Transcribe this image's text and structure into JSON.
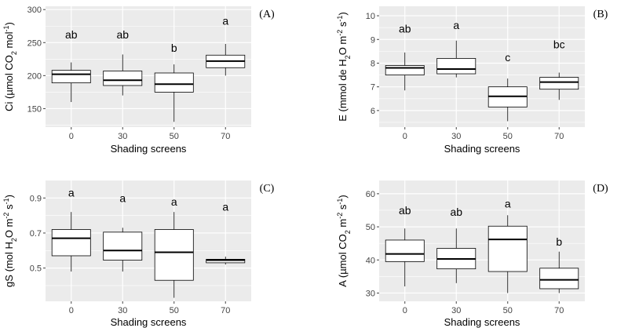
{
  "chart_data": [
    {
      "id": "A",
      "type": "boxplot",
      "panel_label": "(A)",
      "xlabel": "Shading screens",
      "ylabel_parts": [
        "Ci (µmol CO",
        "2",
        " mol",
        "-1",
        ")"
      ],
      "categories": [
        "0",
        "30",
        "50",
        "70"
      ],
      "ylim": [
        122,
        305
      ],
      "yticks": [
        150,
        200,
        250,
        300
      ],
      "boxes": [
        {
          "min": 160,
          "q1": 189,
          "median": 202,
          "q3": 208,
          "max": 220,
          "letter": "ab"
        },
        {
          "min": 170,
          "q1": 185,
          "median": 193,
          "q3": 207,
          "max": 232,
          "letter": "ab"
        },
        {
          "min": 130,
          "q1": 175,
          "median": 187,
          "q3": 204,
          "max": 217,
          "letter": "b"
        },
        {
          "min": 200,
          "q1": 212,
          "median": 222,
          "q3": 231,
          "max": 248,
          "letter": "a"
        }
      ],
      "letter_y": [
        262,
        262,
        242,
        283
      ]
    },
    {
      "id": "B",
      "type": "boxplot",
      "panel_label": "(B)",
      "xlabel": "Shading screens",
      "ylabel_parts": [
        "E (mmol de H",
        "2",
        "O m",
        "-2",
        " s",
        "-1",
        ")"
      ],
      "categories": [
        "0",
        "30",
        "50",
        "70"
      ],
      "ylim": [
        5.3,
        10.4
      ],
      "yticks": [
        6,
        7,
        8,
        9,
        10
      ],
      "boxes": [
        {
          "min": 6.85,
          "q1": 7.5,
          "median": 7.8,
          "q3": 7.9,
          "max": 8.45,
          "letter": "ab"
        },
        {
          "min": 7.4,
          "q1": 7.55,
          "median": 7.75,
          "q3": 8.2,
          "max": 8.95,
          "letter": "a"
        },
        {
          "min": 5.55,
          "q1": 6.15,
          "median": 6.6,
          "q3": 7.0,
          "max": 7.35,
          "letter": "c"
        },
        {
          "min": 6.45,
          "q1": 6.9,
          "median": 7.2,
          "q3": 7.4,
          "max": 7.6,
          "letter": "bc"
        }
      ],
      "letter_y": [
        9.45,
        9.6,
        8.25,
        8.8
      ]
    },
    {
      "id": "C",
      "type": "boxplot",
      "panel_label": "(C)",
      "xlabel": "Shading screens",
      "ylabel_parts": [
        "gS (mol  H",
        "2",
        "O m",
        "-2",
        " s",
        "-1",
        ")"
      ],
      "categories": [
        "0",
        "30",
        "50",
        "70"
      ],
      "ylim": [
        0.31,
        1.0
      ],
      "yticks": [
        0.5,
        0.7,
        0.9
      ],
      "ytick_labels": [
        "0.5",
        "0.7",
        "0.9"
      ],
      "boxes": [
        {
          "min": 0.48,
          "q1": 0.57,
          "median": 0.67,
          "q3": 0.72,
          "max": 0.82,
          "letter": "a"
        },
        {
          "min": 0.48,
          "q1": 0.545,
          "median": 0.6,
          "q3": 0.705,
          "max": 0.73,
          "letter": "a"
        },
        {
          "min": 0.33,
          "q1": 0.43,
          "median": 0.59,
          "q3": 0.72,
          "max": 0.82,
          "letter": "a"
        },
        {
          "min": 0.52,
          "q1": 0.53,
          "median": 0.545,
          "q3": 0.55,
          "max": 0.565,
          "letter": "a"
        }
      ],
      "letter_y": [
        0.93,
        0.9,
        0.88,
        0.85
      ]
    },
    {
      "id": "D",
      "type": "boxplot",
      "panel_label": "(D)",
      "xlabel": "Shading screens",
      "ylabel_parts": [
        "A (µmol CO",
        "2",
        " m",
        "-2",
        " s",
        "-1",
        ")"
      ],
      "categories": [
        "0",
        "30",
        "50",
        "70"
      ],
      "ylim": [
        27.5,
        64
      ],
      "yticks": [
        30,
        40,
        50,
        60
      ],
      "boxes": [
        {
          "min": 32,
          "q1": 39.5,
          "median": 41.8,
          "q3": 46,
          "max": 49.5,
          "letter": "ab"
        },
        {
          "min": 33,
          "q1": 37.3,
          "median": 40.3,
          "q3": 43.5,
          "max": 49.5,
          "letter": "ab"
        },
        {
          "min": 30,
          "q1": 36.5,
          "median": 46.2,
          "q3": 50.2,
          "max": 53.5,
          "letter": "a"
        },
        {
          "min": 30,
          "q1": 31.3,
          "median": 34,
          "q3": 37.5,
          "max": 42.5,
          "letter": "b"
        }
      ],
      "letter_y": [
        55,
        54.5,
        57,
        45.5
      ]
    }
  ],
  "style": {
    "panel_background": "#ebebeb",
    "gridline_color": "#ffffff",
    "box_fill": "#ffffff",
    "box_stroke": "#000000",
    "median_stroke": "#000000"
  }
}
